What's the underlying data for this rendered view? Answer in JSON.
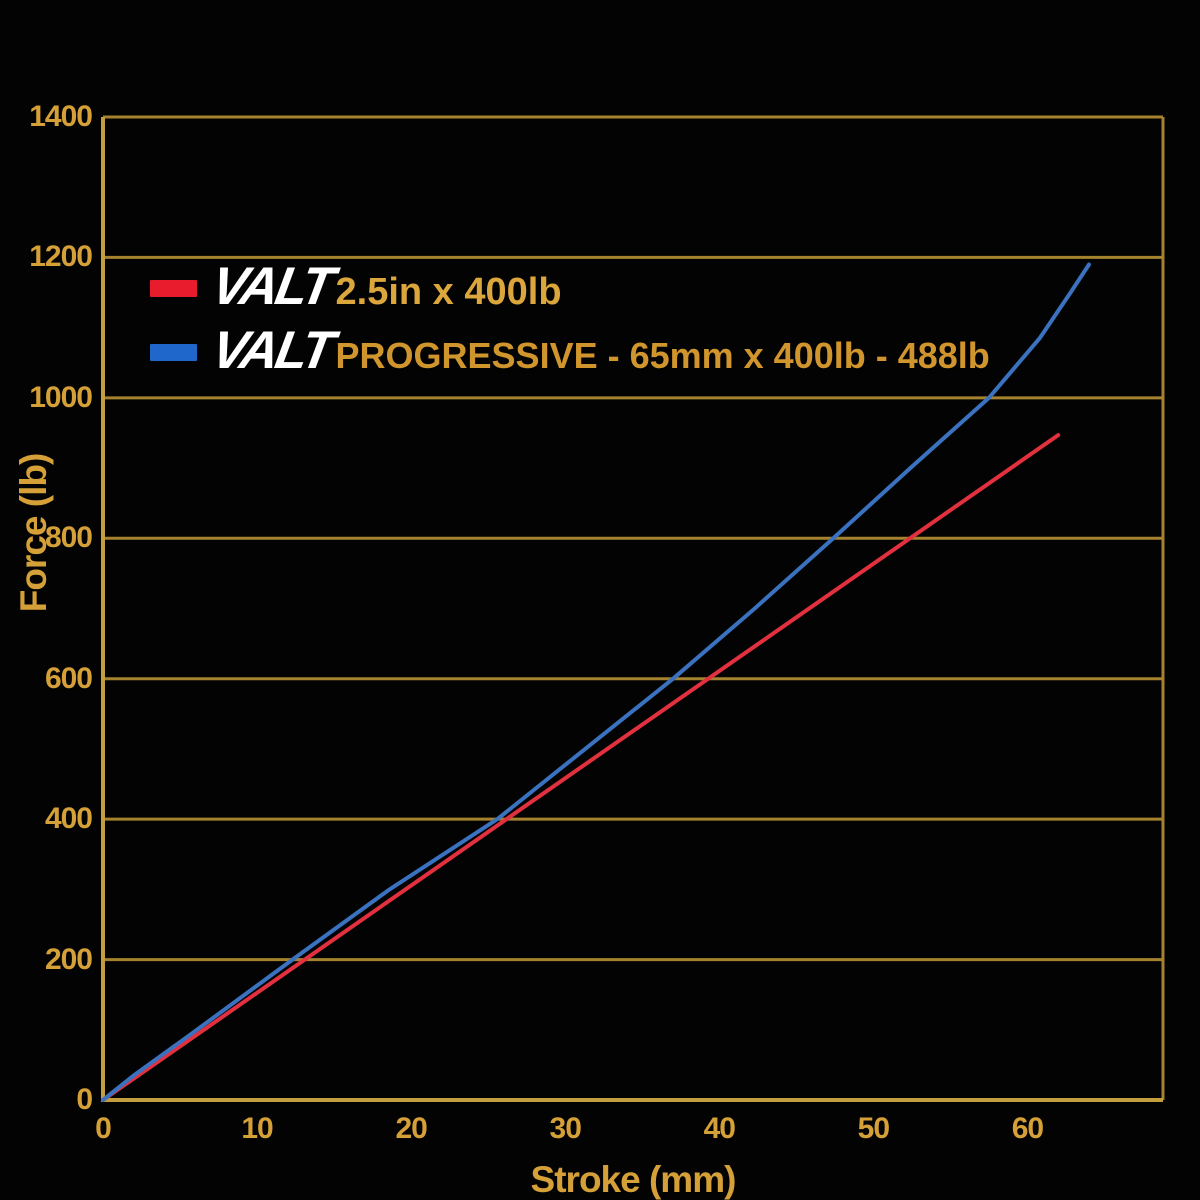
{
  "chart_data": {
    "type": "line",
    "title": "",
    "xlabel": "Stroke (mm)",
    "ylabel": "Force (lb)",
    "xlim": [
      0,
      68.8
    ],
    "ylim": [
      0,
      1400
    ],
    "x_ticks": [
      0,
      10,
      20,
      30,
      40,
      50,
      60
    ],
    "y_ticks": [
      0,
      200,
      400,
      600,
      800,
      1000,
      1200,
      1400
    ],
    "grid": "horizontal-only",
    "legend_position": "top-left-inside",
    "background_color": "#030303",
    "grid_color": "#a5822e",
    "axis_color": "#c49e3d",
    "tick_label_color": "#d4a037",
    "series": [
      {
        "name": "VALT 2.5in x 400lb",
        "brand": "VALT",
        "label": "2.5in x 400lb",
        "color": "#e2303f",
        "swatch_color": "#e81c2d",
        "x": [
          0,
          62
        ],
        "y": [
          0,
          947
        ]
      },
      {
        "name": "VALT PROGRESSIVE - 65mm x 400lb - 488lb",
        "brand": "VALT",
        "label": "PROGRESSIVE - 65mm x 400lb - 488lb",
        "color": "#3a72c0",
        "swatch_color": "#1f67cb",
        "x": [
          0,
          2,
          5.6,
          12.3,
          18.6,
          25.6,
          31.3,
          37,
          42.3,
          47.4,
          52.4,
          57.5,
          60.8,
          62.8,
          64
        ],
        "y": [
          0,
          35,
          92,
          200,
          300,
          400,
          500,
          600,
          700,
          800,
          900,
          1000,
          1085,
          1150,
          1190
        ]
      }
    ]
  },
  "legend": {
    "rows": [
      {
        "brand": "VALT",
        "label": "2.5in x 400lb"
      },
      {
        "brand": "VALT",
        "label": "PROGRESSIVE - 65mm x 400lb - 488lb"
      }
    ]
  }
}
